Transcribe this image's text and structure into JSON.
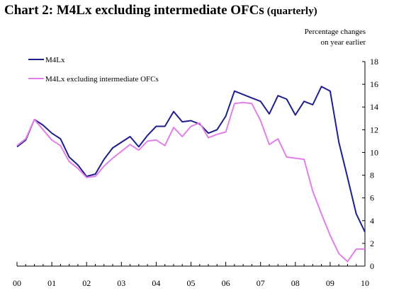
{
  "chart_data": {
    "type": "line",
    "title": "Chart 2: M4Lx excluding intermediate OFCs",
    "subtitle": "(quarterly)",
    "units_line1": "Percentage changes",
    "units_line2": "on year earlier",
    "xlabel": "",
    "ylabel": "",
    "xlim": [
      2000.0,
      2010.0
    ],
    "ylim": [
      0,
      18
    ],
    "yticks": [
      0,
      2,
      4,
      6,
      8,
      10,
      12,
      14,
      16,
      18
    ],
    "xtick_labels": [
      "00",
      "01",
      "02",
      "03",
      "04",
      "05",
      "06",
      "07",
      "08",
      "09",
      "10"
    ],
    "legend_position": "top-left",
    "grid": false,
    "x": [
      2000.0,
      2000.25,
      2000.5,
      2000.75,
      2001.0,
      2001.25,
      2001.5,
      2001.75,
      2002.0,
      2002.25,
      2002.5,
      2002.75,
      2003.0,
      2003.25,
      2003.5,
      2003.75,
      2004.0,
      2004.25,
      2004.5,
      2004.75,
      2005.0,
      2005.25,
      2005.5,
      2005.75,
      2006.0,
      2006.25,
      2006.5,
      2006.75,
      2007.0,
      2007.25,
      2007.5,
      2007.75,
      2008.0,
      2008.25,
      2008.5,
      2008.75,
      2009.0,
      2009.25,
      2009.5,
      2009.75,
      2010.0
    ],
    "series": [
      {
        "name": "M4Lx",
        "color": "#1f1f8c",
        "values": [
          10.5,
          11.1,
          12.9,
          12.4,
          11.7,
          11.2,
          9.6,
          8.9,
          7.9,
          8.1,
          9.4,
          10.4,
          10.9,
          11.4,
          10.5,
          11.5,
          12.3,
          12.3,
          13.6,
          12.7,
          12.8,
          12.5,
          11.7,
          12.0,
          13.2,
          15.4,
          15.1,
          14.8,
          14.5,
          13.4,
          15.0,
          14.7,
          13.3,
          14.5,
          14.2,
          15.8,
          15.4,
          10.9,
          7.8,
          4.6,
          3.0
        ]
      },
      {
        "name": "M4Lx excluding intermediate OFCs",
        "color": "#e27ee7",
        "values": [
          10.6,
          11.2,
          12.9,
          12.0,
          11.1,
          10.6,
          9.2,
          8.6,
          7.8,
          7.9,
          8.8,
          9.5,
          10.1,
          10.7,
          10.2,
          11.0,
          11.1,
          10.6,
          12.2,
          11.4,
          12.3,
          12.6,
          11.3,
          11.6,
          11.8,
          14.3,
          14.4,
          14.3,
          12.8,
          10.7,
          11.2,
          9.6,
          9.5,
          9.4,
          6.6,
          4.6,
          2.7,
          1.1,
          0.4,
          1.5,
          1.5
        ]
      }
    ]
  }
}
